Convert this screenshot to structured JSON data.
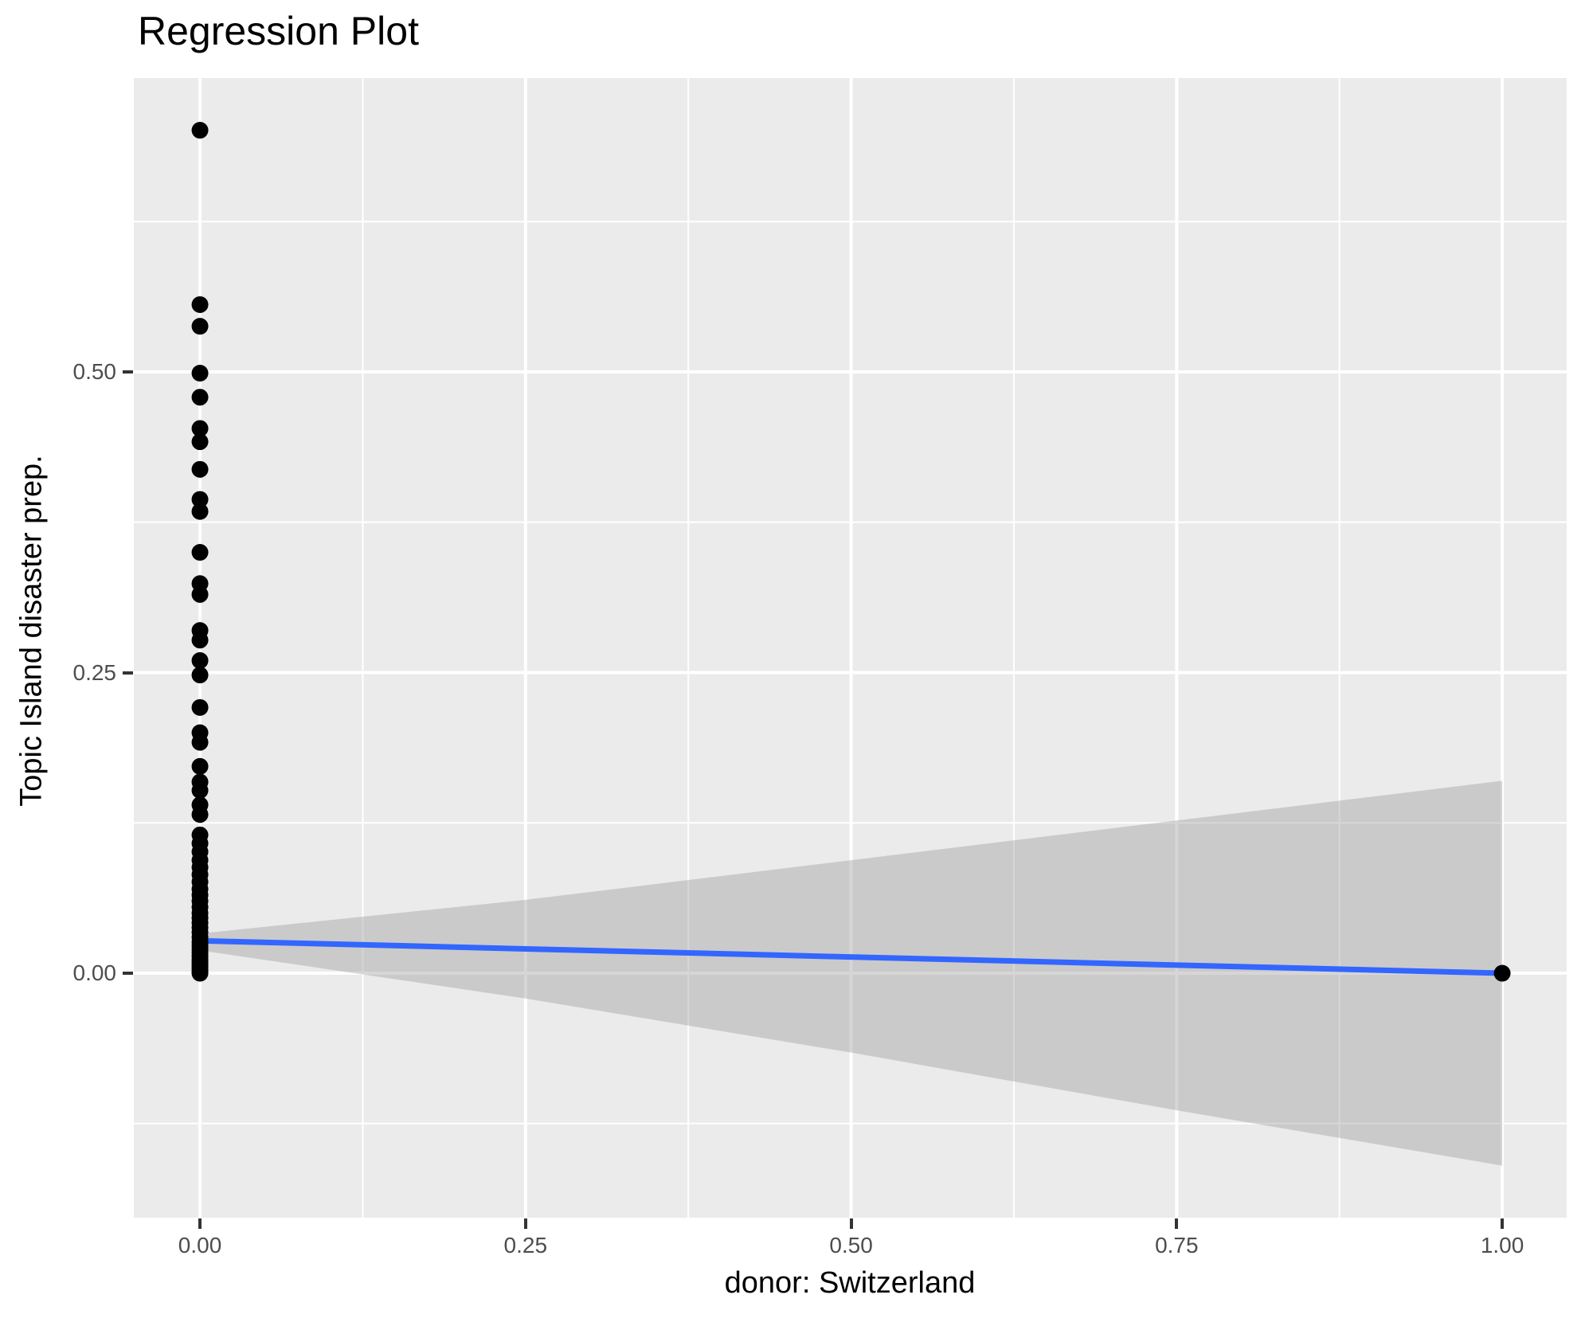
{
  "title": "Regression Plot",
  "colors": {
    "panel_background": "#EBEBEB",
    "gridline": "#FFFFFF",
    "regression_line": "#3366FF",
    "confidence_band": "rgba(153,153,153,0.4)",
    "point": "#000000",
    "tick_mark": "#333333",
    "tick_label": "#4D4D4D",
    "text": "#000000"
  },
  "chart_data": {
    "type": "scatter",
    "title": "Regression Plot",
    "xlabel": "donor: Switzerland",
    "ylabel": "Topic Island disaster prep.",
    "grid": "on",
    "legend": "none",
    "xlim": [
      -0.0508,
      1.0495
    ],
    "ylim": [
      -0.2033,
      0.7444
    ],
    "x_ticks": {
      "values": [
        0,
        0.25,
        0.5,
        0.75,
        1.0
      ],
      "labels": [
        "0.00",
        "0.25",
        "0.50",
        "0.75",
        "1.00"
      ]
    },
    "y_ticks": {
      "values": [
        0,
        0.25,
        0.5
      ],
      "labels": [
        "0.00",
        "0.25",
        "0.50"
      ]
    },
    "x_minor": [
      0.125,
      0.375,
      0.625,
      0.875
    ],
    "y_minor": [
      -0.125,
      0.125,
      0.375,
      0.625
    ],
    "regression_line": {
      "x": [
        0,
        1
      ],
      "y": [
        0.027,
        0.0
      ]
    },
    "ci_ribbon": {
      "x": [
        0,
        0.25,
        0.5,
        0.75,
        1.0
      ],
      "upper": [
        0.033,
        0.061,
        0.094,
        0.127,
        0.16
      ],
      "lower": [
        0.019,
        -0.021,
        -0.066,
        -0.114,
        -0.16
      ]
    },
    "points": [
      [
        0,
        0.701
      ],
      [
        0,
        0.556
      ],
      [
        0,
        0.538
      ],
      [
        0,
        0.499
      ],
      [
        0,
        0.479
      ],
      [
        0,
        0.453
      ],
      [
        0,
        0.442
      ],
      [
        0,
        0.419
      ],
      [
        0,
        0.394
      ],
      [
        0,
        0.384
      ],
      [
        0,
        0.35
      ],
      [
        0,
        0.324
      ],
      [
        0,
        0.315
      ],
      [
        0,
        0.285
      ],
      [
        0,
        0.277
      ],
      [
        0,
        0.26
      ],
      [
        0,
        0.248
      ],
      [
        0,
        0.221
      ],
      [
        0,
        0.2
      ],
      [
        0,
        0.192
      ],
      [
        0,
        0.172
      ],
      [
        0,
        0.159
      ],
      [
        0,
        0.152
      ],
      [
        0,
        0.14
      ],
      [
        0,
        0.132
      ],
      [
        0,
        0.115
      ],
      [
        0,
        0.108
      ],
      [
        0,
        0.101
      ],
      [
        0,
        0.094
      ],
      [
        0,
        0.088
      ],
      [
        0,
        0.082
      ],
      [
        0,
        0.076
      ],
      [
        0,
        0.07
      ],
      [
        0,
        0.065
      ],
      [
        0,
        0.06
      ],
      [
        0,
        0.055
      ],
      [
        0,
        0.05
      ],
      [
        0,
        0.046
      ],
      [
        0,
        0.042
      ],
      [
        0,
        0.038
      ],
      [
        0,
        0.034
      ],
      [
        0,
        0.03
      ],
      [
        0,
        0.026
      ],
      [
        0,
        0.023
      ],
      [
        0,
        0.02
      ],
      [
        0,
        0.017
      ],
      [
        0,
        0.014
      ],
      [
        0,
        0.011
      ],
      [
        0,
        0.009
      ],
      [
        0,
        0.007
      ],
      [
        0,
        0.005
      ],
      [
        0,
        0.003
      ],
      [
        0,
        0.001
      ],
      [
        0,
        0.0
      ],
      [
        1,
        0.0
      ]
    ]
  }
}
